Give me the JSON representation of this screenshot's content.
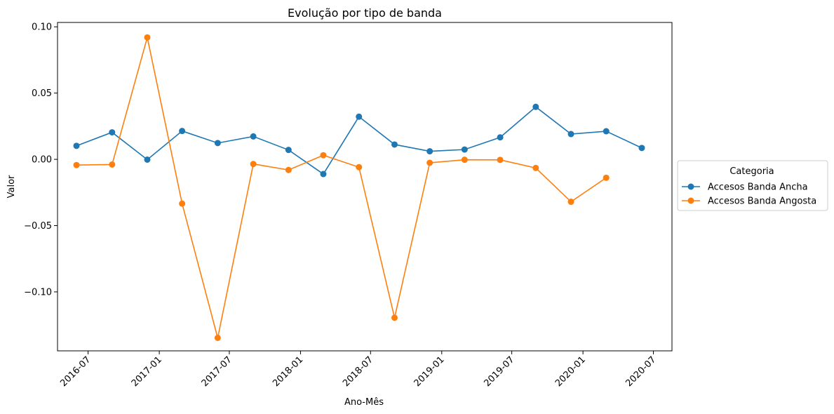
{
  "chart_data": {
    "type": "line",
    "title": "Evolução por tipo de banda",
    "xlabel": "Ano-Mês",
    "ylabel": "Valor",
    "x": [
      "2016-06",
      "2016-09",
      "2016-12",
      "2017-03",
      "2017-06",
      "2017-09",
      "2017-12",
      "2018-03",
      "2018-06",
      "2018-09",
      "2018-12",
      "2019-03",
      "2019-06",
      "2019-09",
      "2019-12",
      "2020-03",
      "2020-06"
    ],
    "series": [
      {
        "name": "Accesos Banda Ancha",
        "color": "#1f77b4",
        "values": [
          0.0102,
          0.0204,
          -0.0002,
          0.0214,
          0.0123,
          0.0173,
          0.0071,
          -0.0111,
          0.0322,
          0.0112,
          0.0061,
          0.0074,
          0.0166,
          0.0396,
          0.0191,
          0.0212,
          0.0086
        ]
      },
      {
        "name": "Accesos Banda Angosta",
        "color": "#ff7f0e",
        "values": [
          -0.0043,
          -0.0039,
          0.092,
          -0.0334,
          -0.1347,
          -0.0035,
          -0.008,
          0.0031,
          -0.0059,
          -0.1195,
          -0.0026,
          -0.0003,
          -0.0004,
          -0.0065,
          -0.032,
          -0.0139,
          null
        ]
      }
    ],
    "xticks": [
      "2016-07",
      "2017-01",
      "2017-07",
      "2018-01",
      "2018-07",
      "2019-01",
      "2019-07",
      "2020-01",
      "2020-07"
    ],
    "yticks": [
      0.1,
      0.05,
      0.0,
      -0.05,
      -0.1
    ],
    "ytick_labels": [
      "0.10",
      "0.05",
      "0.00",
      "−0.05",
      "−0.10"
    ],
    "ylim": [
      -0.1445,
      0.1033
    ],
    "xlim": [
      "2016-04-13",
      "2020-08-18"
    ],
    "grid": false,
    "legend": {
      "title": "Categoria",
      "placement": "outside-right"
    }
  }
}
